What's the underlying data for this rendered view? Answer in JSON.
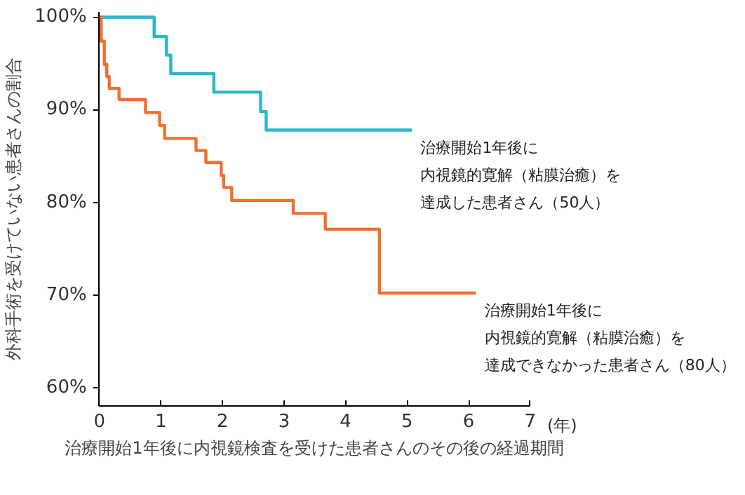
{
  "chart_data": {
    "type": "step",
    "xlabel": "治療開始1年後に内視鏡検査を受けた患者さんのその後の経過期間",
    "ylabel": "外科手術を受けていない患者さんの割合",
    "xlim": [
      0,
      7
    ],
    "xticks": [
      0,
      1,
      2,
      3,
      4,
      5,
      6,
      7
    ],
    "ylim": [
      58,
      100.5
    ],
    "yticks": [
      {
        "value": 60,
        "label": "60%"
      },
      {
        "value": 70,
        "label": "70%"
      },
      {
        "value": 80,
        "label": "80%"
      },
      {
        "value": 90,
        "label": "90%"
      },
      {
        "value": 100,
        "label": "100%"
      }
    ],
    "grid": false,
    "legend": false,
    "line_style": "solid",
    "marker": "none",
    "annotations": [
      "(年)"
    ],
    "series": [
      {
        "name": "治療開始1年後に内視鏡的寛解（粘膜治癒）を達成した患者さん（50人）",
        "color": "#29b8c8",
        "x": [
          0,
          0.89,
          1.09,
          1.16,
          1.86,
          2.62,
          2.71,
          5.08
        ],
        "values": [
          100,
          97.9,
          95.9,
          93.9,
          91.9,
          89.8,
          87.8,
          87.8
        ]
      },
      {
        "name": "治療開始1年後に内視鏡的寛解（粘膜治癒）を達成できなかった患者さん（80人）",
        "color": "#f07030",
        "x": [
          0,
          0.03,
          0.08,
          0.12,
          0.16,
          0.32,
          0.75,
          0.98,
          1.06,
          1.57,
          1.73,
          1.98,
          2.02,
          2.15,
          3.15,
          3.67,
          4.55,
          6.12
        ],
        "values": [
          100,
          97.4,
          94.9,
          93.6,
          92.3,
          91.1,
          89.7,
          88.3,
          86.9,
          85.6,
          84.3,
          82.9,
          81.6,
          80.2,
          78.8,
          77.1,
          70.2,
          70.2
        ]
      }
    ]
  }
}
